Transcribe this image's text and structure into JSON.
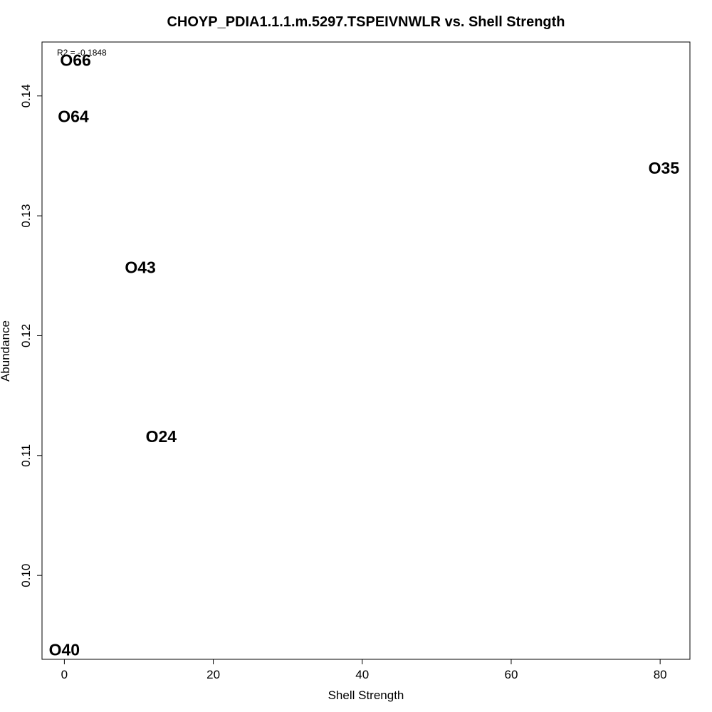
{
  "chart_data": {
    "type": "scatter",
    "title": "CHOYP_PDIA1.1.1.m.5297.TSPEIVNWLR vs. Shell Strength",
    "xlabel": "Shell Strength",
    "ylabel": "Abundance",
    "annotation": "R2 = -0.1848",
    "xlim": [
      -3,
      84
    ],
    "ylim": [
      0.093,
      0.1445
    ],
    "xticks": [
      0,
      20,
      40,
      60,
      80
    ],
    "xtick_labels": [
      "0",
      "20",
      "40",
      "60",
      "80"
    ],
    "yticks": [
      0.1,
      0.11,
      0.12,
      0.13,
      0.14
    ],
    "ytick_labels": [
      "0.10",
      "0.11",
      "0.12",
      "0.13",
      "0.14"
    ],
    "grid": false,
    "marker": "text-label",
    "points": [
      {
        "label": "O66",
        "x": 1.5,
        "y": 0.143
      },
      {
        "label": "O64",
        "x": 1.2,
        "y": 0.1383
      },
      {
        "label": "O35",
        "x": 80.5,
        "y": 0.134
      },
      {
        "label": "O43",
        "x": 10.2,
        "y": 0.1257
      },
      {
        "label": "O24",
        "x": 13.0,
        "y": 0.1116
      },
      {
        "label": "O40",
        "x": 0.0,
        "y": 0.0938
      }
    ]
  }
}
